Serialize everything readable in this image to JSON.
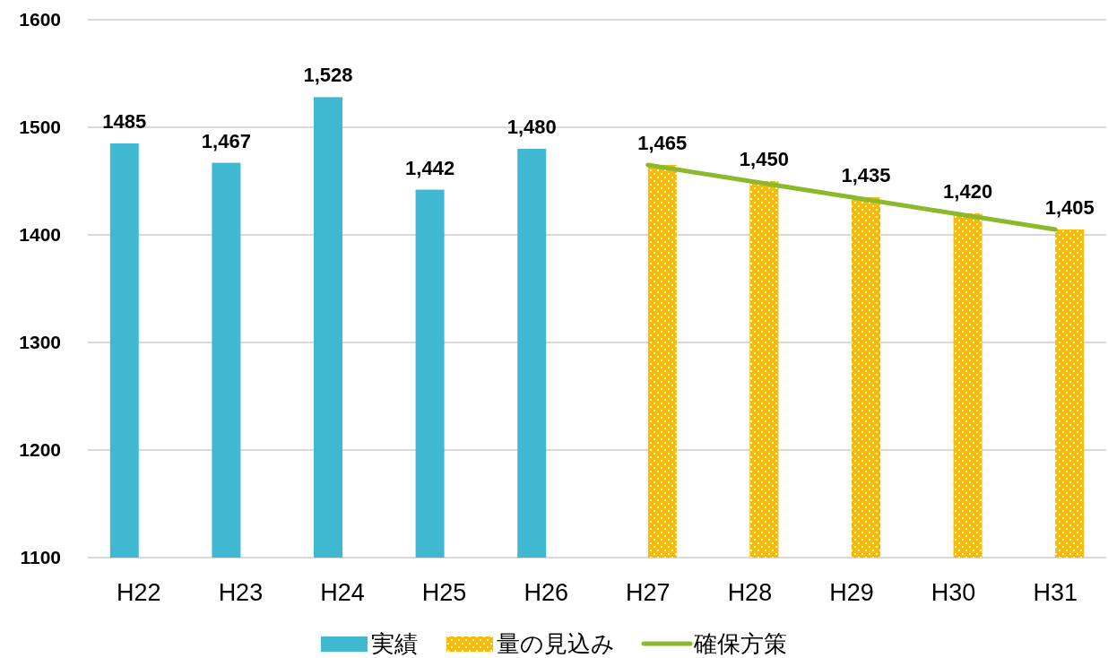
{
  "chart_data": {
    "type": "bar",
    "categories": [
      "H22",
      "H23",
      "H24",
      "H25",
      "H26",
      "H27",
      "H28",
      "H29",
      "H30",
      "H31"
    ],
    "series": [
      {
        "name": "実績",
        "color": "#41b8d2",
        "values": [
          1485,
          1467,
          1528,
          1442,
          1480,
          null,
          null,
          null,
          null,
          null
        ],
        "value_labels": [
          "1485",
          "1,467",
          "1,528",
          "1,442",
          "1,480",
          null,
          null,
          null,
          null,
          null
        ]
      },
      {
        "name": "量の見込み",
        "color": "#fbb900",
        "values": [
          null,
          null,
          null,
          null,
          null,
          1465,
          1450,
          1435,
          1420,
          1405
        ],
        "value_labels": [
          null,
          null,
          null,
          null,
          null,
          "1,465",
          "1,450",
          "1,435",
          "1,420",
          "1,405"
        ]
      },
      {
        "name": "確保方策",
        "type": "line",
        "color": "#8cb82b",
        "values": [
          null,
          null,
          null,
          null,
          null,
          1465,
          1450,
          1435,
          1420,
          1405
        ]
      }
    ],
    "ylim": [
      1100,
      1600
    ],
    "yticks": [
      1100,
      1200,
      1300,
      1400,
      1500,
      1600
    ],
    "grid": "y",
    "legend": "bottom",
    "marker": "none",
    "line_style": "solid"
  }
}
